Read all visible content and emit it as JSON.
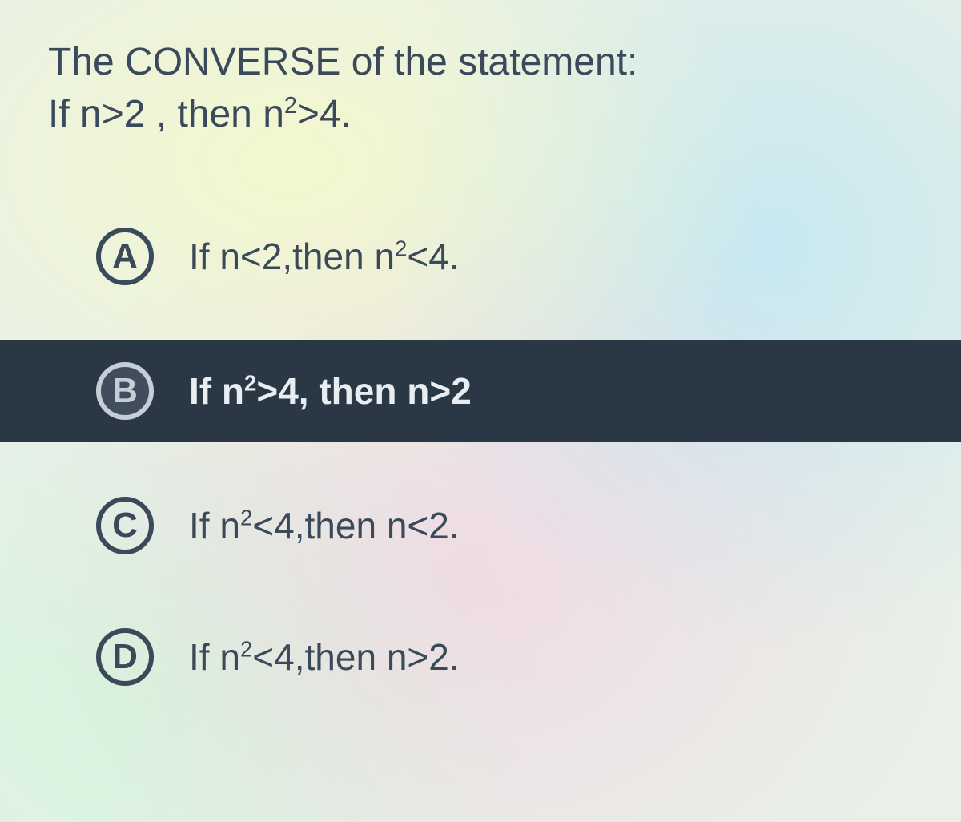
{
  "question": {
    "line1": "The CONVERSE of the statement:",
    "line2_prefix": "If  n>2 , then  n",
    "line2_suffix": ">4."
  },
  "options": [
    {
      "letter": "A",
      "prefix": "If n<2,then n",
      "suffix": "<4.",
      "selected": false
    },
    {
      "letter": "B",
      "prefix": "If n",
      "mid": ">4, then n>2",
      "suffix": "",
      "selected": true
    },
    {
      "letter": "C",
      "prefix": "If n",
      "mid": "<4,then n<2.",
      "suffix": "",
      "selected": false
    },
    {
      "letter": "D",
      "prefix": "If n",
      "mid": "<4,then n>2.",
      "suffix": "",
      "selected": false
    }
  ],
  "colors": {
    "text_default": "#3a4a5a",
    "selected_bg": "#2a3744",
    "selected_text": "#e8edf2"
  }
}
